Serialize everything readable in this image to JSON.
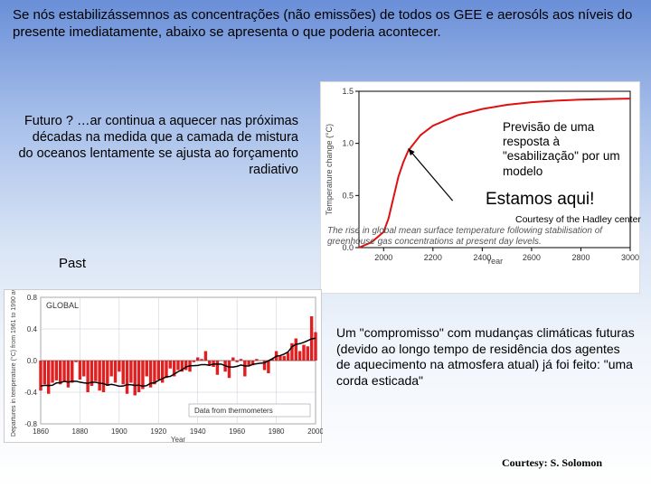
{
  "intro": "Se nós estabilizássemnos as concentrações (não emissões) de todos os GEE e aerosóls aos níveis do presente imediatamente, abaixo se apresenta o que poderia acontecer.",
  "left_block": "Futuro ? …ar continua a aquecer nas próximas décadas na medida que a camada de mistura do oceanos lentamente se ajusta ao forçamento radiativo",
  "past_label": "Past",
  "annot_right": "Previsão de uma resposta à \"esabilização\" por um modelo",
  "here_label": "Estamos aqui!",
  "courtesy_hadley": "Courtesy of the Hadley center",
  "future_caption": "The rise in global mean surface temperature following stabilisation of greenhouse gas concentrations at present day levels.",
  "commit_text": "Um \"compromisso\" com mudanças climáticas futuras (devido ao longo tempo de residência dos agentes de aquecimento na atmosfera atual) já foi feito:  \"uma corda esticada\"",
  "courtesy_solomon": "Courtesy: S. Solomon",
  "future_chart": {
    "type": "line",
    "xlim": [
      1900,
      3000
    ],
    "ylim": [
      0.0,
      1.5
    ],
    "xticks": [
      2000,
      2200,
      2400,
      2600,
      2800,
      3000
    ],
    "yticks": [
      0.0,
      0.5,
      1.0,
      1.5
    ],
    "ylabel": "Temperature change (°C)",
    "xlabel": "Year",
    "line_color": "#e01010",
    "line_width": 2,
    "grid_color": "#000000",
    "background": "#ffffff",
    "data": [
      [
        1900,
        0.0
      ],
      [
        1950,
        0.05
      ],
      [
        2000,
        0.15
      ],
      [
        2020,
        0.28
      ],
      [
        2040,
        0.48
      ],
      [
        2060,
        0.68
      ],
      [
        2080,
        0.82
      ],
      [
        2100,
        0.93
      ],
      [
        2150,
        1.08
      ],
      [
        2200,
        1.17
      ],
      [
        2300,
        1.27
      ],
      [
        2400,
        1.33
      ],
      [
        2500,
        1.37
      ],
      [
        2600,
        1.395
      ],
      [
        2700,
        1.41
      ],
      [
        2800,
        1.42
      ],
      [
        2900,
        1.425
      ],
      [
        3000,
        1.43
      ]
    ],
    "arrow": {
      "from": [
        2280,
        0.45
      ],
      "to": [
        2100,
        0.95
      ],
      "color": "#000000"
    }
  },
  "past_chart": {
    "type": "bar-line",
    "xlim": [
      1860,
      2000
    ],
    "ylim": [
      -0.8,
      0.8
    ],
    "xticks": [
      1860,
      1880,
      1900,
      1920,
      1940,
      1960,
      1980,
      2000
    ],
    "yticks": [
      -0.8,
      -0.4,
      0.0,
      0.4,
      0.8
    ],
    "ylabel": "Departures in temperature (°C) from 1961 to 1990 ave",
    "xlabel": "Year",
    "title": "GLOBAL",
    "bar_color": "#e02020",
    "line_color": "#000000",
    "grid_color": "#c8c8d8",
    "background": "#ffffff",
    "legend": "Data from thermometers",
    "data": [
      [
        1860,
        -0.38
      ],
      [
        1862,
        -0.3
      ],
      [
        1864,
        -0.42
      ],
      [
        1866,
        -0.28
      ],
      [
        1868,
        -0.25
      ],
      [
        1870,
        -0.3
      ],
      [
        1872,
        -0.26
      ],
      [
        1874,
        -0.34
      ],
      [
        1876,
        -0.28
      ],
      [
        1878,
        -0.02
      ],
      [
        1880,
        -0.24
      ],
      [
        1882,
        -0.2
      ],
      [
        1884,
        -0.4
      ],
      [
        1886,
        -0.32
      ],
      [
        1888,
        -0.26
      ],
      [
        1890,
        -0.38
      ],
      [
        1892,
        -0.4
      ],
      [
        1894,
        -0.32
      ],
      [
        1896,
        -0.2
      ],
      [
        1898,
        -0.28
      ],
      [
        1900,
        -0.14
      ],
      [
        1902,
        -0.3
      ],
      [
        1904,
        -0.42
      ],
      [
        1906,
        -0.28
      ],
      [
        1908,
        -0.44
      ],
      [
        1910,
        -0.4
      ],
      [
        1912,
        -0.36
      ],
      [
        1914,
        -0.2
      ],
      [
        1916,
        -0.34
      ],
      [
        1918,
        -0.3
      ],
      [
        1920,
        -0.24
      ],
      [
        1922,
        -0.28
      ],
      [
        1924,
        -0.22
      ],
      [
        1926,
        -0.1
      ],
      [
        1928,
        -0.2
      ],
      [
        1930,
        -0.12
      ],
      [
        1932,
        -0.14
      ],
      [
        1934,
        -0.12
      ],
      [
        1936,
        -0.14
      ],
      [
        1938,
        -0.02
      ],
      [
        1940,
        0.04
      ],
      [
        1942,
        0.02
      ],
      [
        1944,
        0.12
      ],
      [
        1946,
        -0.06
      ],
      [
        1948,
        -0.08
      ],
      [
        1950,
        -0.18
      ],
      [
        1952,
        0.0
      ],
      [
        1954,
        -0.14
      ],
      [
        1956,
        -0.22
      ],
      [
        1958,
        0.04
      ],
      [
        1960,
        -0.02
      ],
      [
        1962,
        0.02
      ],
      [
        1964,
        -0.2
      ],
      [
        1966,
        -0.06
      ],
      [
        1968,
        -0.06
      ],
      [
        1970,
        0.02
      ],
      [
        1972,
        0.0
      ],
      [
        1974,
        -0.12
      ],
      [
        1976,
        -0.16
      ],
      [
        1978,
        0.02
      ],
      [
        1980,
        0.12
      ],
      [
        1982,
        0.06
      ],
      [
        1984,
        0.06
      ],
      [
        1986,
        0.1
      ],
      [
        1988,
        0.22
      ],
      [
        1990,
        0.28
      ],
      [
        1992,
        0.12
      ],
      [
        1994,
        0.2
      ],
      [
        1996,
        0.18
      ],
      [
        1998,
        0.56
      ],
      [
        2000,
        0.36
      ]
    ]
  }
}
